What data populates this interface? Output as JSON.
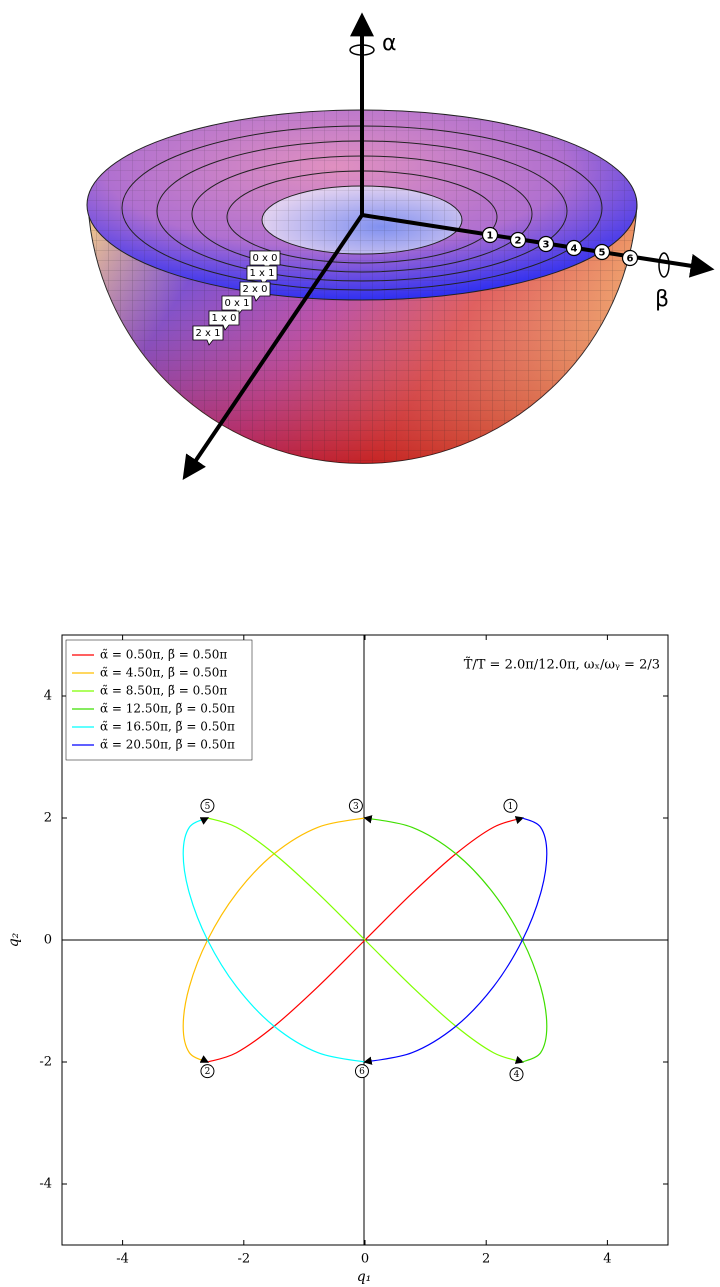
{
  "diagram": {
    "axis_labels": {
      "alpha": "α",
      "beta": "β"
    },
    "rim_markers": [
      "1",
      "2",
      "3",
      "4",
      "5",
      "6"
    ],
    "mode_tags": [
      "0 x 0",
      "1 x 1",
      "2 x 0",
      "0 x 1",
      "1 x 0",
      "2 x 1"
    ]
  },
  "chart_data": {
    "type": "line",
    "annotation": "T̃/T = 2.0π/12.0π,   ωₓ/ωᵧ = 2/3",
    "x_label": "q₁",
    "y_label": "q₂",
    "xlim": [
      -5,
      5
    ],
    "ylim": [
      -5,
      5
    ],
    "xticks": [
      -4,
      -2,
      0,
      2,
      4
    ],
    "yticks": [
      -4,
      -2,
      0,
      2,
      4
    ],
    "legend": "upper left",
    "series": [
      {
        "name": "α̃ = 0.50π, β̃ = 0.50π",
        "color": "#ff0000",
        "x": [
          -2.598,
          -2.121,
          -1.5,
          -0.776,
          0,
          0.776,
          1.5,
          2.121,
          2.598
        ],
        "values": [
          -2,
          -1.848,
          -1.414,
          -0.765,
          0,
          0.765,
          1.414,
          1.848,
          2
        ]
      },
      {
        "name": "α̃ = 4.50π, β̃ = 0.50π",
        "color": "#ffbf00",
        "x": [
          0,
          -0.776,
          -1.5,
          -2.121,
          -2.598,
          -2.898,
          -3,
          -2.898,
          -2.598
        ],
        "values": [
          2,
          1.848,
          1.414,
          0.765,
          0,
          -0.765,
          -1.414,
          -1.848,
          -2
        ]
      },
      {
        "name": "α̃ = 8.50π, β̃ = 0.50π",
        "color": "#7fff00",
        "x": [
          -2.598,
          -2.121,
          -1.5,
          -0.776,
          0,
          0.776,
          1.5,
          2.121,
          2.598
        ],
        "values": [
          2,
          1.848,
          1.414,
          0.765,
          0,
          -0.765,
          -1.414,
          -1.848,
          -2
        ]
      },
      {
        "name": "α̃ = 12.50π, β̃ = 0.50π",
        "color": "#3fdf00",
        "x": [
          2.598,
          2.898,
          3,
          2.898,
          2.598,
          2.121,
          1.5,
          0.776,
          0
        ],
        "values": [
          -2,
          -1.848,
          -1.414,
          -0.765,
          0,
          0.765,
          1.414,
          1.848,
          2
        ]
      },
      {
        "name": "α̃ = 16.50π, β̃ = 0.50π",
        "color": "#00ffff",
        "x": [
          0,
          -0.776,
          -1.5,
          -2.121,
          -2.598,
          -2.898,
          -3,
          -2.898,
          -2.598
        ],
        "values": [
          -2,
          -1.848,
          -1.414,
          -0.765,
          0,
          0.765,
          1.414,
          1.848,
          2
        ]
      },
      {
        "name": "α̃ = 20.50π, β̃ = 0.50π",
        "color": "#0000ff",
        "x": [
          2.598,
          2.898,
          3,
          2.898,
          2.598,
          2.121,
          1.5,
          0.776,
          0
        ],
        "values": [
          2,
          1.848,
          1.414,
          0.765,
          0,
          -0.765,
          -1.414,
          -1.848,
          -2
        ]
      }
    ],
    "point_labels": [
      {
        "text": "1",
        "x": 2.4,
        "y": 2.2
      },
      {
        "text": "2",
        "x": -2.6,
        "y": -2.15
      },
      {
        "text": "3",
        "x": -0.15,
        "y": 2.2
      },
      {
        "text": "4",
        "x": 2.5,
        "y": -2.2
      },
      {
        "text": "5",
        "x": -2.6,
        "y": 2.2
      },
      {
        "text": "6",
        "x": -0.05,
        "y": -2.15
      }
    ]
  }
}
